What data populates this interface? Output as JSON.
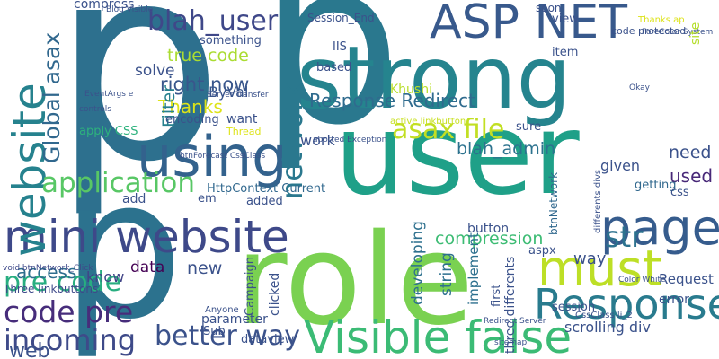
{
  "words": [
    "p",
    "p",
    "p",
    "strong",
    "user",
    "role",
    "ASP NET",
    "mini website",
    "page",
    "Visible false",
    "must",
    "Response",
    "using",
    "website",
    "network",
    "code pre",
    "pre code",
    "incoming",
    "web",
    "application",
    "blah_user",
    "Response Redirect",
    "asax file",
    "Global asax",
    "true code",
    "Session_End",
    "better way",
    "Thanks",
    "right now",
    "str",
    "compression",
    "blah_admin",
    "Filter",
    "data",
    "new",
    "access",
    "Three linkbuttons",
    "know",
    "HttpContext Current",
    "apply CSS",
    "encoding",
    "ByVal",
    "IIS",
    "Khushi",
    "item",
    "view",
    "soon",
    "need",
    "used",
    "given",
    "getting",
    "css",
    "developing",
    "string",
    "implement",
    "first",
    "three differents",
    "button",
    "aspx",
    "sure",
    "way",
    "error",
    "Request",
    "session",
    "scrolling div",
    "Campaign",
    "clicked",
    "parameter",
    "Sub",
    "dataview",
    "Anyone",
    "work",
    "compress",
    "solve",
    "based",
    "want",
    "something",
    "active linkbutton",
    "added",
    "add",
    "em",
    "btnNetwork",
    "Thread",
    "void btnNetwork_Click",
    "ForeColor System",
    "differents divs",
    "CssClass li_2",
    "Redirect Server",
    "Color White",
    "btnForecast CssClass",
    "EventArgs e",
    "Server Transfer",
    "aborted Exception",
    "controls",
    "site",
    "code protected",
    "Thanks ap",
    "Okay",
    "sitemap",
    "Blog Visible"
  ]
}
